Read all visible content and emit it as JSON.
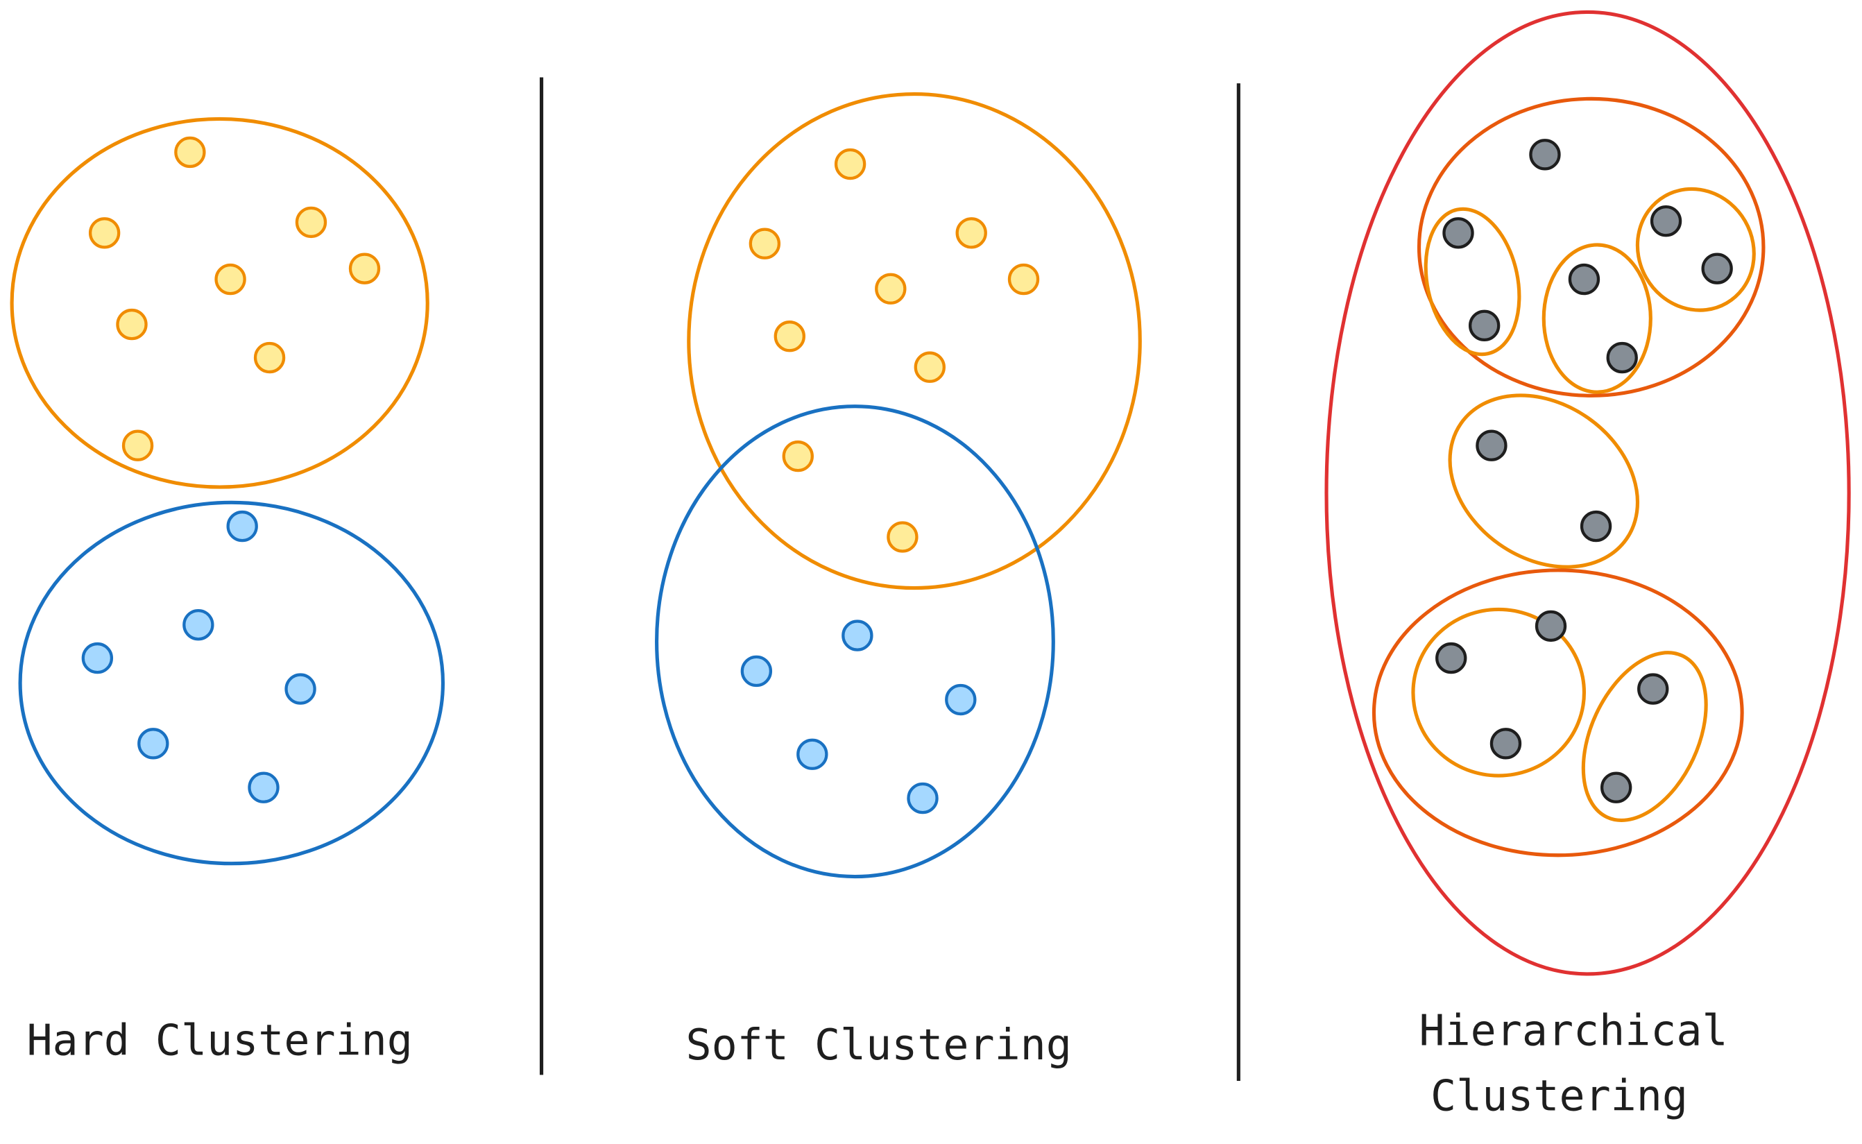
{
  "panels": [
    {
      "label_lines": [
        "Hard Clustering"
      ]
    },
    {
      "label_lines": [
        "Soft Clustering"
      ]
    },
    {
      "label_lines": [
        "Hierarchical",
        "Clustering"
      ]
    }
  ]
}
